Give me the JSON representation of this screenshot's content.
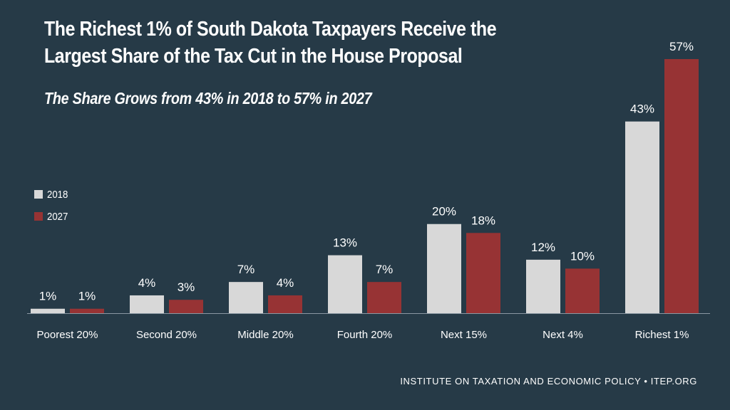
{
  "header": {
    "title": "The Richest 1% of South Dakota Taxpayers Receive the\nLargest Share of the Tax Cut in the House Proposal",
    "subtitle": "The Share Grows from 43% in 2018 to 57% in 2027"
  },
  "legend": [
    {
      "label": "2018",
      "color": "#d8d8d8"
    },
    {
      "label": "2027",
      "color": "#973334"
    }
  ],
  "footer": {
    "source": "INSTITUTE ON TAXATION AND ECONOMIC POLICY • ITEP.ORG"
  },
  "chart_data": {
    "type": "bar",
    "title": "The Richest 1% of South Dakota Taxpayers Receive the Largest Share of the Tax Cut in the House Proposal",
    "subtitle": "The Share Grows from 43% in 2018 to 57% in 2027",
    "categories": [
      "Poorest 20%",
      "Second 20%",
      "Middle 20%",
      "Fourth 20%",
      "Next 15%",
      "Next 4%",
      "Richest 1%"
    ],
    "series": [
      {
        "name": "2018",
        "color": "#d8d8d8",
        "values": [
          1,
          4,
          7,
          13,
          20,
          12,
          43
        ],
        "labels": [
          "1%",
          "4%",
          "7%",
          "13%",
          "20%",
          "12%",
          "43%"
        ]
      },
      {
        "name": "2027",
        "color": "#973334",
        "values": [
          1,
          3,
          4,
          7,
          18,
          10,
          57
        ],
        "labels": [
          "1%",
          "3%",
          "4%",
          "7%",
          "18%",
          "10%",
          "57%"
        ]
      }
    ],
    "ylim": [
      0,
      57
    ],
    "grid": false,
    "legend_position": "left"
  }
}
